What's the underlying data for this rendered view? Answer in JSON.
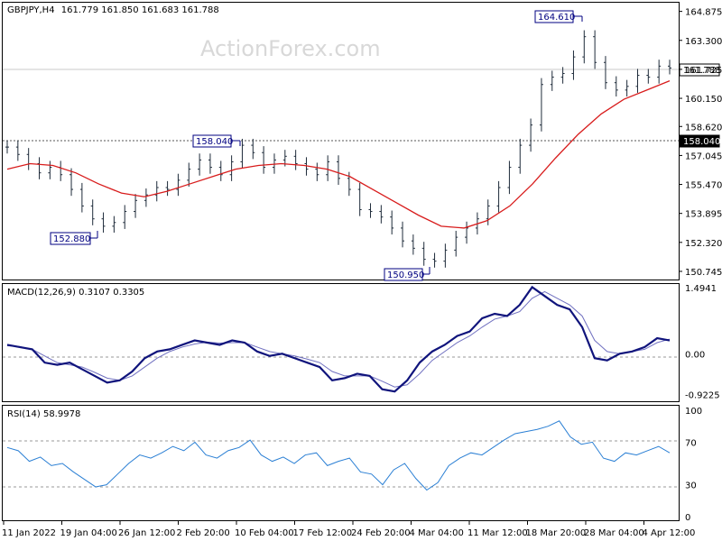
{
  "header": {
    "symbol_label": "GBPJPY,H4",
    "ohlc": "161.779 161.850 161.683 161.788"
  },
  "watermark": "ActionForex.com",
  "colors": {
    "price_bar": "#1e2b3a",
    "moving_average": "#d81c1c",
    "macd": "#10147c",
    "signal": "#7070c0",
    "rsi": "#2a7fd4",
    "annotation": "#000080"
  },
  "chart_data": [
    {
      "type": "line",
      "panel": "price",
      "title": "GBPJPY,H4",
      "yticks": [
        "164.875",
        "163.300",
        "161.725",
        "160.150",
        "158.620",
        "157.045",
        "155.470",
        "153.895",
        "152.320",
        "150.745"
      ],
      "ylim": [
        150.4,
        165.2
      ],
      "xticks": [
        "11 Jan 2022",
        "19 Jan 04:00",
        "26 Jan 12:00",
        "2 Feb 20:00",
        "10 Feb 04:00",
        "17 Feb 12:00",
        "24 Feb 20:00",
        "4 Mar 04:00",
        "11 Mar 12:00",
        "18 Mar 20:00",
        "28 Mar 04:00",
        "4 Apr 12:00"
      ],
      "series": [
        {
          "role": "close",
          "values": [
            157.5,
            157.1,
            156.6,
            156.1,
            156.4,
            156.0,
            155.2,
            154.3,
            153.6,
            153.2,
            153.4,
            154.0,
            154.6,
            154.9,
            155.3,
            155.2,
            155.7,
            156.3,
            156.8,
            156.4,
            156.0,
            156.7,
            157.6,
            157.2,
            156.4,
            156.8,
            157.0,
            156.6,
            156.3,
            156.0,
            156.7,
            155.8,
            155.2,
            154.1,
            154.0,
            153.7,
            153.1,
            152.4,
            152.0,
            151.4,
            151.3,
            151.9,
            152.6,
            153.1,
            153.6,
            154.3,
            155.3,
            156.4,
            157.6,
            158.7,
            160.9,
            161.3,
            161.5,
            162.4,
            163.5,
            162.1,
            161.0,
            160.6,
            160.8,
            161.4,
            161.3,
            161.9,
            161.8
          ]
        },
        {
          "role": "moving-average",
          "values": [
            156.3,
            156.6,
            156.5,
            156.1,
            155.5,
            155.0,
            154.8,
            155.1,
            155.5,
            155.9,
            156.3,
            156.5,
            156.6,
            156.5,
            156.3,
            155.9,
            155.2,
            154.5,
            153.8,
            153.2,
            153.1,
            153.5,
            154.3,
            155.5,
            156.9,
            158.2,
            159.3,
            160.1,
            160.6,
            161.1
          ]
        }
      ]
    },
    {
      "type": "line",
      "panel": "macd",
      "title": "MACD(12,26,9) 0.3107 0.3305",
      "yticks": [
        "1.4941",
        "0.00",
        "-0.9225"
      ],
      "ylim": [
        -1.05,
        1.55
      ],
      "series": [
        {
          "role": "macd",
          "values": [
            0.2,
            0.15,
            0.1,
            -0.2,
            -0.25,
            -0.2,
            -0.35,
            -0.5,
            -0.65,
            -0.6,
            -0.4,
            -0.1,
            0.05,
            0.1,
            0.2,
            0.3,
            0.25,
            0.2,
            0.3,
            0.25,
            0.05,
            -0.05,
            0.0,
            -0.1,
            -0.2,
            -0.3,
            -0.6,
            -0.55,
            -0.45,
            -0.5,
            -0.8,
            -0.85,
            -0.6,
            -0.2,
            0.05,
            0.2,
            0.4,
            0.5,
            0.8,
            0.9,
            0.85,
            1.1,
            1.5,
            1.3,
            1.1,
            1.0,
            0.6,
            -0.1,
            -0.15,
            0.0,
            0.05,
            0.15,
            0.35,
            0.3
          ]
        },
        {
          "role": "signal",
          "values": [
            0.18,
            0.16,
            0.1,
            -0.05,
            -0.2,
            -0.25,
            -0.3,
            -0.42,
            -0.55,
            -0.6,
            -0.5,
            -0.3,
            -0.1,
            0.05,
            0.15,
            0.22,
            0.26,
            0.24,
            0.25,
            0.25,
            0.15,
            0.05,
            0.0,
            -0.05,
            -0.12,
            -0.2,
            -0.4,
            -0.5,
            -0.5,
            -0.5,
            -0.62,
            -0.75,
            -0.7,
            -0.45,
            -0.15,
            0.05,
            0.25,
            0.4,
            0.6,
            0.78,
            0.85,
            0.95,
            1.25,
            1.4,
            1.25,
            1.1,
            0.85,
            0.3,
            0.05,
            0.0,
            0.05,
            0.1,
            0.25,
            0.33
          ]
        }
      ]
    },
    {
      "type": "line",
      "panel": "rsi",
      "title": "RSI(14) 58.9978",
      "yticks": [
        "100",
        "70",
        "30",
        "0"
      ],
      "ylim": [
        0,
        100
      ],
      "series": [
        {
          "role": "rsi",
          "values": [
            65,
            62,
            52,
            56,
            48,
            50,
            42,
            35,
            28,
            30,
            40,
            50,
            58,
            55,
            60,
            66,
            62,
            70,
            58,
            55,
            62,
            65,
            72,
            58,
            52,
            56,
            50,
            58,
            60,
            48,
            52,
            55,
            42,
            40,
            30,
            44,
            50,
            36,
            25,
            32,
            48,
            55,
            60,
            58,
            65,
            72,
            78,
            80,
            82,
            85,
            90,
            75,
            68,
            70,
            55,
            52,
            60,
            58,
            62,
            66,
            60
          ]
        }
      ]
    }
  ],
  "annotations": {
    "high": "164.610",
    "mid_high": "158.040",
    "low_left": "152.880",
    "low_mid": "150.950",
    "current_tag": "161.788",
    "level_tag": "158.040"
  }
}
